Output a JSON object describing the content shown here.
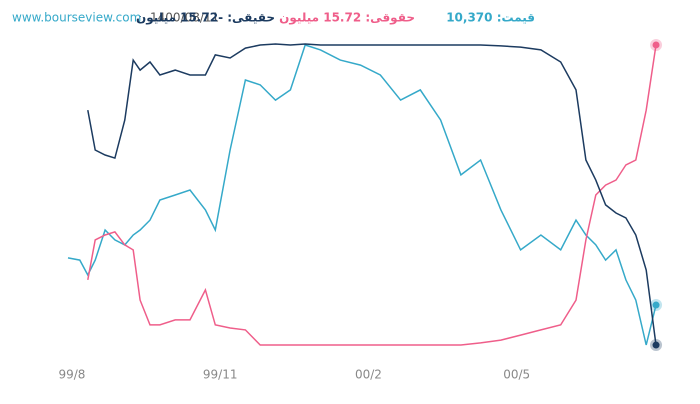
{
  "chart_data": {
    "type": "line",
    "site": "www.bourseview.com",
    "date": "1400/08/11",
    "x": [
      -0.08,
      0.16,
      0.32,
      0.47,
      0.67,
      0.87,
      1.07,
      1.24,
      1.38,
      1.58,
      1.78,
      2.09,
      2.39,
      2.7,
      2.9,
      3.2,
      3.51,
      3.81,
      4.12,
      4.42,
      4.72,
      5.03,
      5.43,
      5.84,
      6.24,
      6.65,
      7.05,
      7.46,
      7.87,
      8.27,
      8.68,
      9.08,
      9.49,
      9.89,
      10.2,
      10.4,
      10.6,
      10.8,
      11.01,
      11.21,
      11.41,
      11.62,
      11.82
    ],
    "xlim": [
      -0.1,
      11.9
    ],
    "xticks": [
      {
        "value": 0,
        "label": "99/8"
      },
      {
        "value": 3,
        "label": "99/11"
      },
      {
        "value": 6,
        "label": "00/2"
      },
      {
        "value": 9,
        "label": "00/5"
      }
    ],
    "ylim": [
      0,
      100
    ],
    "series": [
      {
        "name": "قیمت: 10,370",
        "color": "#35a9c9",
        "values": [
          29.7,
          29.0,
          24.2,
          29.0,
          38.7,
          35.5,
          33.9,
          37.1,
          38.7,
          41.9,
          48.4,
          50.0,
          51.6,
          45.2,
          38.7,
          64.5,
          87.1,
          85.5,
          80.6,
          83.9,
          98.4,
          96.8,
          93.5,
          91.9,
          88.7,
          80.6,
          83.9,
          74.2,
          56.5,
          61.3,
          45.2,
          32.3,
          37.1,
          32.3,
          41.9,
          37.1,
          33.9,
          29.0,
          32.3,
          22.6,
          16.1,
          1.6,
          14.5
        ]
      },
      {
        "name": "حقوقی: 15.72 میلیون",
        "color": "#ef5e8a",
        "values": [
          null,
          null,
          22.6,
          35.5,
          37.1,
          38.1,
          33.9,
          32.3,
          16.1,
          8.1,
          8.1,
          9.7,
          9.7,
          19.4,
          8.1,
          7.1,
          6.5,
          1.6,
          1.6,
          1.6,
          1.6,
          1.6,
          1.6,
          1.6,
          1.6,
          1.6,
          1.6,
          1.6,
          1.6,
          2.3,
          3.2,
          4.8,
          6.5,
          8.1,
          16.1,
          35.5,
          50.0,
          53.2,
          54.8,
          59.7,
          61.3,
          77.4,
          98.4
        ]
      },
      {
        "name": "حقیقی: -15.72 میلیون",
        "color": "#1c3b60",
        "values": [
          null,
          null,
          77.4,
          64.5,
          62.9,
          61.9,
          74.2,
          93.5,
          90.3,
          92.9,
          88.7,
          90.3,
          88.7,
          88.7,
          95.2,
          94.2,
          97.4,
          98.4,
          98.7,
          98.4,
          98.7,
          98.4,
          98.4,
          98.4,
          98.4,
          98.4,
          98.4,
          98.4,
          98.4,
          98.4,
          98.1,
          97.7,
          96.8,
          92.9,
          83.9,
          61.3,
          54.8,
          46.8,
          44.2,
          42.6,
          37.1,
          25.8,
          1.6
        ]
      }
    ]
  }
}
